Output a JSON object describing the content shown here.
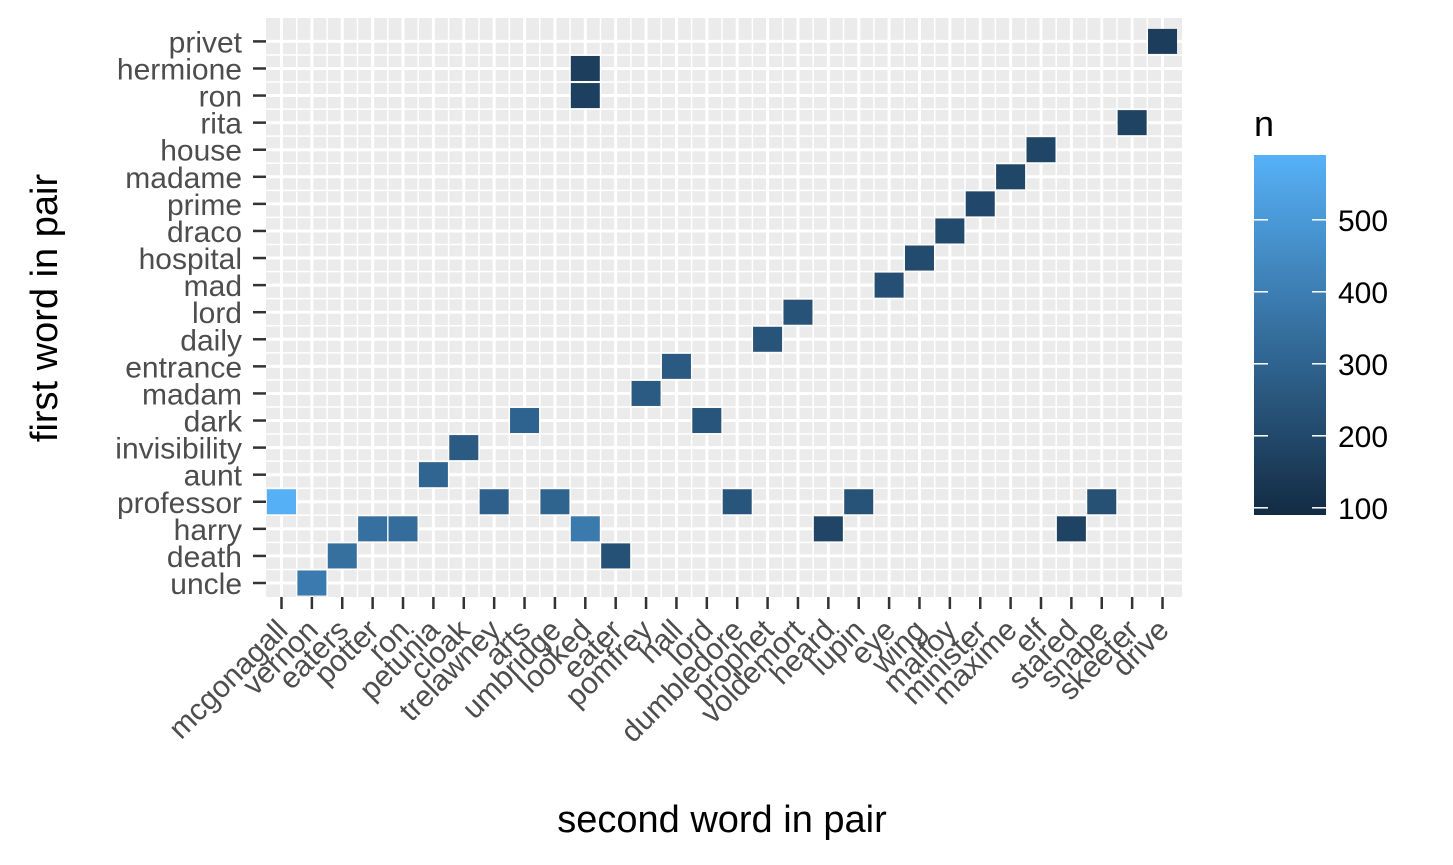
{
  "chart_data": {
    "type": "heatmap",
    "xlabel": "second word in pair",
    "ylabel": "first word in pair",
    "x_categories": [
      "mcgonagall",
      "vernon",
      "eaters",
      "potter",
      "ron",
      "petunia",
      "cloak",
      "trelawney",
      "arts",
      "umbridge",
      "looked",
      "eater",
      "pomfrey",
      "hall",
      "lord",
      "dumbledore",
      "prophet",
      "voldemort",
      "heard",
      "lupin",
      "eye",
      "wing",
      "malfoy",
      "minister",
      "maxime",
      "elf",
      "stared",
      "snape",
      "skeeter",
      "drive"
    ],
    "y_categories": [
      "uncle",
      "death",
      "harry",
      "professor",
      "aunt",
      "invisibility",
      "dark",
      "madam",
      "entrance",
      "daily",
      "lord",
      "mad",
      "hospital",
      "draco",
      "prime",
      "madame",
      "house",
      "rita",
      "ron",
      "hermione",
      "privet"
    ],
    "cells": [
      {
        "x": "vernon",
        "y": "uncle",
        "n": 386
      },
      {
        "x": "eaters",
        "y": "death",
        "n": 346
      },
      {
        "x": "eater",
        "y": "death",
        "n": 232
      },
      {
        "x": "potter",
        "y": "harry",
        "n": 349
      },
      {
        "x": "ron",
        "y": "harry",
        "n": 335
      },
      {
        "x": "looked",
        "y": "harry",
        "n": 385
      },
      {
        "x": "heard",
        "y": "harry",
        "n": 188
      },
      {
        "x": "stared",
        "y": "harry",
        "n": 178
      },
      {
        "x": "mcgonagall",
        "y": "professor",
        "n": 587
      },
      {
        "x": "trelawney",
        "y": "professor",
        "n": 289
      },
      {
        "x": "umbridge",
        "y": "professor",
        "n": 301
      },
      {
        "x": "dumbledore",
        "y": "professor",
        "n": 247
      },
      {
        "x": "lupin",
        "y": "professor",
        "n": 240
      },
      {
        "x": "snape",
        "y": "professor",
        "n": 230
      },
      {
        "x": "petunia",
        "y": "aunt",
        "n": 306
      },
      {
        "x": "cloak",
        "y": "invisibility",
        "n": 268
      },
      {
        "x": "arts",
        "y": "dark",
        "n": 300
      },
      {
        "x": "lord",
        "y": "dark",
        "n": 247
      },
      {
        "x": "pomfrey",
        "y": "madam",
        "n": 266
      },
      {
        "x": "hall",
        "y": "entrance",
        "n": 262
      },
      {
        "x": "prophet",
        "y": "daily",
        "n": 244
      },
      {
        "x": "voldemort",
        "y": "lord",
        "n": 240
      },
      {
        "x": "eye",
        "y": "mad",
        "n": 225
      },
      {
        "x": "wing",
        "y": "hospital",
        "n": 208
      },
      {
        "x": "malfoy",
        "y": "draco",
        "n": 205
      },
      {
        "x": "minister",
        "y": "prime",
        "n": 198
      },
      {
        "x": "maxime",
        "y": "madame",
        "n": 193
      },
      {
        "x": "elf",
        "y": "house",
        "n": 189
      },
      {
        "x": "skeeter",
        "y": "rita",
        "n": 180
      },
      {
        "x": "looked",
        "y": "ron",
        "n": 170
      },
      {
        "x": "looked",
        "y": "hermione",
        "n": 162
      },
      {
        "x": "drive",
        "y": "privet",
        "n": 160
      }
    ],
    "legend": {
      "title": "n",
      "placement": "right",
      "range": [
        90,
        590
      ],
      "ticks": [
        100,
        200,
        300,
        400,
        500
      ],
      "color_low": "#132B43",
      "color_high": "#56B1F7"
    },
    "panel_background": "#EBEBEB",
    "grid": true
  }
}
